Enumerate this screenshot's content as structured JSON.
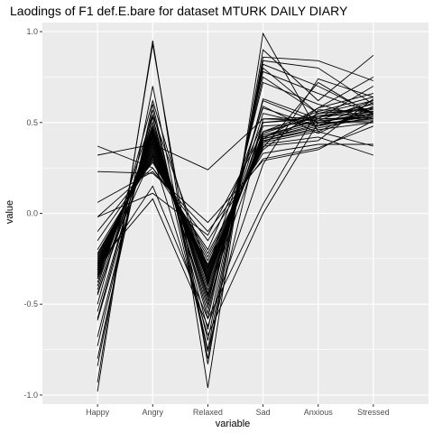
{
  "chart_data": {
    "type": "line",
    "title": "Laodings of F1 def.E.bare for dataset MTURK DAILY DIARY",
    "xlabel": "variable",
    "ylabel": "value",
    "categories": [
      "Happy",
      "Angry",
      "Relaxed",
      "Sad",
      "Anxious",
      "Stressed"
    ],
    "ylim": [
      -1.05,
      1.05
    ],
    "yticks": [
      -1.0,
      -0.5,
      0.0,
      0.5,
      1.0
    ],
    "ytick_labels": [
      "-1.0",
      "-0.5",
      "0.0",
      "0.5",
      "1.0"
    ],
    "grid": true,
    "legend": "none",
    "series": [
      {
        "values": [
          -0.98,
          0.95,
          -0.96,
          0.99,
          0.45,
          0.59
        ]
      },
      {
        "values": [
          -0.93,
          0.93,
          -0.83,
          0.9,
          0.62,
          0.87
        ]
      },
      {
        "values": [
          -0.84,
          0.7,
          -0.8,
          0.86,
          0.84,
          0.73
        ]
      },
      {
        "values": [
          -0.8,
          0.6,
          -0.75,
          0.84,
          0.8,
          0.6
        ]
      },
      {
        "values": [
          -0.73,
          0.57,
          -0.7,
          0.82,
          0.7,
          0.55
        ]
      },
      {
        "values": [
          -0.58,
          0.53,
          -0.64,
          0.8,
          0.55,
          0.58
        ]
      },
      {
        "values": [
          -0.54,
          0.5,
          -0.58,
          0.78,
          0.66,
          0.55
        ]
      },
      {
        "values": [
          -0.45,
          0.48,
          -0.55,
          0.75,
          0.55,
          0.62
        ]
      },
      {
        "values": [
          -0.42,
          0.47,
          -0.5,
          0.72,
          0.6,
          0.52
        ]
      },
      {
        "values": [
          -0.38,
          0.46,
          -0.48,
          0.62,
          0.5,
          0.51
        ]
      },
      {
        "values": [
          -0.36,
          0.45,
          -0.46,
          0.55,
          0.48,
          0.55
        ]
      },
      {
        "values": [
          -0.35,
          0.44,
          -0.44,
          0.5,
          0.52,
          0.53
        ]
      },
      {
        "values": [
          -0.34,
          0.43,
          -0.42,
          0.48,
          0.5,
          0.56
        ]
      },
      {
        "values": [
          -0.33,
          0.42,
          -0.4,
          0.45,
          0.53,
          0.58
        ]
      },
      {
        "values": [
          -0.32,
          0.41,
          -0.38,
          0.44,
          0.54,
          0.54
        ]
      },
      {
        "values": [
          -0.31,
          0.4,
          -0.37,
          0.43,
          0.51,
          0.53
        ]
      },
      {
        "values": [
          -0.3,
          0.39,
          -0.36,
          0.42,
          0.52,
          0.52
        ]
      },
      {
        "values": [
          -0.29,
          0.38,
          -0.35,
          0.42,
          0.5,
          0.55
        ]
      },
      {
        "values": [
          -0.28,
          0.37,
          -0.34,
          0.41,
          0.49,
          0.52
        ]
      },
      {
        "values": [
          -0.27,
          0.36,
          -0.33,
          0.41,
          0.48,
          0.54
        ]
      },
      {
        "values": [
          -0.26,
          0.35,
          -0.32,
          0.4,
          0.47,
          0.53
        ]
      },
      {
        "values": [
          -0.25,
          0.34,
          -0.31,
          0.4,
          0.46,
          0.5
        ]
      },
      {
        "values": [
          -0.24,
          0.33,
          -0.3,
          0.39,
          0.55,
          0.57
        ]
      },
      {
        "values": [
          -0.23,
          0.32,
          -0.29,
          0.39,
          0.45,
          0.37
        ]
      },
      {
        "values": [
          -0.22,
          0.31,
          -0.28,
          0.38,
          0.42,
          0.32
        ]
      },
      {
        "values": [
          -0.2,
          0.3,
          -0.26,
          0.37,
          0.4,
          0.63
        ]
      },
      {
        "values": [
          -0.15,
          0.29,
          -0.24,
          0.36,
          0.72,
          0.54
        ]
      },
      {
        "values": [
          -0.1,
          0.28,
          -0.22,
          0.35,
          0.58,
          0.75
        ]
      },
      {
        "values": [
          -0.02,
          0.25,
          -0.15,
          0.33,
          0.38,
          0.38
        ]
      },
      {
        "values": [
          0.06,
          0.23,
          -0.1,
          0.3,
          0.36,
          0.48
        ]
      },
      {
        "values": [
          0.23,
          0.22,
          -0.05,
          0.29,
          0.35,
          0.51
        ]
      },
      {
        "values": [
          0.32,
          0.38,
          0.24,
          0.52,
          0.51,
          0.62
        ]
      },
      {
        "values": [
          0.37,
          0.25,
          -0.2,
          0.5,
          0.53,
          0.6
        ]
      },
      {
        "values": [
          -0.02,
          0.11,
          -0.12,
          0.45,
          0.56,
          0.64
        ]
      },
      {
        "values": [
          -0.28,
          0.08,
          -0.62,
          0.27,
          0.74,
          0.64
        ]
      },
      {
        "values": [
          -0.31,
          0.15,
          -0.58,
          0.05,
          0.57,
          0.56
        ]
      },
      {
        "values": [
          -0.36,
          0.32,
          -0.67,
          0.0,
          0.5,
          0.5
        ]
      },
      {
        "values": [
          -0.68,
          0.53,
          -0.76,
          0.52,
          0.53,
          0.56
        ]
      },
      {
        "values": [
          -0.59,
          0.47,
          -0.45,
          0.41,
          0.58,
          0.66
        ]
      },
      {
        "values": [
          -0.5,
          0.62,
          -0.39,
          0.59,
          0.44,
          0.58
        ]
      },
      {
        "values": [
          -0.44,
          0.43,
          -0.52,
          0.63,
          0.52,
          0.7
        ]
      },
      {
        "values": [
          -0.4,
          0.54,
          -0.3,
          0.58,
          0.48,
          0.61
        ]
      }
    ]
  }
}
